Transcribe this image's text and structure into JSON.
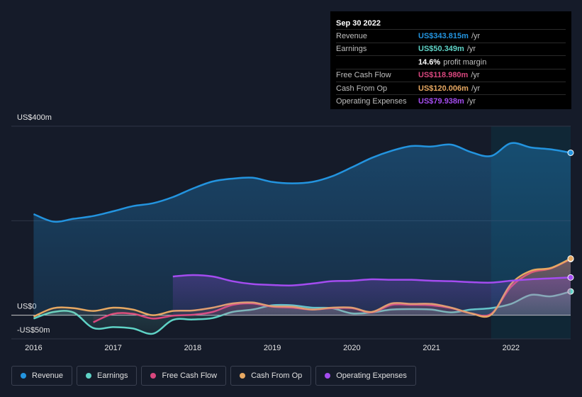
{
  "chart_data": {
    "type": "area",
    "x": [
      2016,
      2016.25,
      2016.5,
      2016.75,
      2017,
      2017.25,
      2017.5,
      2017.75,
      2018,
      2018.25,
      2018.5,
      2018.75,
      2019,
      2019.25,
      2019.5,
      2019.75,
      2020,
      2020.25,
      2020.5,
      2020.75,
      2021,
      2021.25,
      2021.5,
      2021.75,
      2022,
      2022.25,
      2022.5,
      2022.75
    ],
    "xlim": [
      2015.72,
      2022.75
    ],
    "xticks": [
      2016,
      2017,
      2018,
      2019,
      2020,
      2021,
      2022
    ],
    "ylim": [
      -50,
      400
    ],
    "yticks": [
      {
        "value": 400,
        "label": "US$400m"
      },
      {
        "value": 200,
        "label": null
      },
      {
        "value": 0,
        "label": "US$0"
      },
      {
        "value": -50,
        "label": "-US$50m"
      }
    ],
    "highlight_start": 2021.75,
    "series": [
      {
        "name": "Revenue",
        "color": "#2394df",
        "values": [
          214,
          198,
          204,
          210,
          220,
          231,
          237,
          250,
          268,
          283,
          289,
          291,
          282,
          279,
          282,
          294,
          313,
          333,
          348,
          358,
          357,
          361,
          345,
          337,
          364,
          355,
          351,
          343.815
        ]
      },
      {
        "name": "Earnings",
        "color": "#5fd3c6",
        "values": [
          -7,
          7,
          6,
          -27,
          -25,
          -28,
          -39,
          -10,
          -9,
          -6,
          7,
          12,
          21,
          21,
          16,
          15,
          4,
          6,
          12,
          13,
          12,
          6,
          12,
          15,
          24,
          43,
          40,
          50.349
        ]
      },
      {
        "name": "Free Cash Flow",
        "color": "#d9477e",
        "values": [
          null,
          null,
          null,
          -15,
          3,
          3,
          -7,
          -1,
          1,
          7,
          22,
          25,
          18,
          16,
          12,
          15,
          15,
          6,
          22,
          22,
          21,
          15,
          4,
          3,
          60,
          90,
          99,
          118.98
        ]
      },
      {
        "name": "Cash From Op",
        "color": "#e7a862",
        "values": [
          -3,
          15,
          15,
          9,
          16,
          12,
          0,
          9,
          10,
          16,
          25,
          27,
          19,
          18,
          12,
          16,
          16,
          7,
          25,
          24,
          24,
          16,
          4,
          1,
          66,
          94,
          100,
          120.006
        ]
      },
      {
        "name": "Operating Expenses",
        "color": "#a44cf0",
        "values": [
          null,
          null,
          null,
          null,
          null,
          null,
          null,
          82,
          85,
          82,
          72,
          66,
          64,
          63,
          67,
          72,
          73,
          76,
          75,
          75,
          73,
          72,
          70,
          69,
          73,
          76,
          78,
          79.938
        ]
      }
    ],
    "tooltip": {
      "date": "Sep 30 2022",
      "rows": [
        {
          "label": "Revenue",
          "value": "US$343.815m",
          "unit": "/yr"
        },
        {
          "label": "Earnings",
          "value": "US$50.349m",
          "unit": "/yr"
        },
        {
          "label": "Free Cash Flow",
          "value": "US$118.980m",
          "unit": "/yr"
        },
        {
          "label": "Cash From Op",
          "value": "US$120.006m",
          "unit": "/yr"
        },
        {
          "label": "Operating Expenses",
          "value": "US$79.938m",
          "unit": "/yr"
        }
      ],
      "margin": {
        "value": "14.6%",
        "label": "profit margin"
      }
    }
  }
}
